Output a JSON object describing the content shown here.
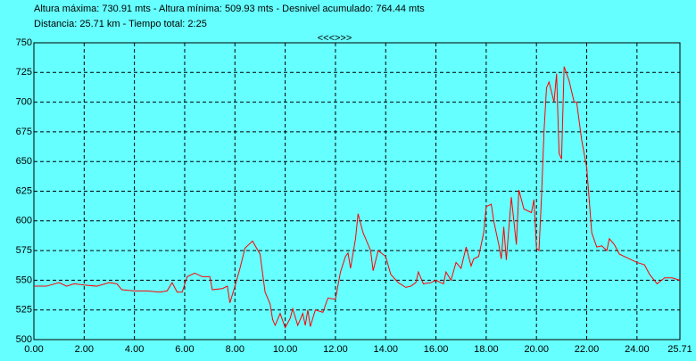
{
  "chart_data": {
    "type": "line",
    "title": "Altura máxima: 730.91 mts - Altura mínima: 509.93 mts - Desnivel acumulado: 764.44 mts",
    "subtitle": "Distancia: 25.71 km - Tiempo total: 2:25",
    "nav": "<<<>>>",
    "x": [
      0,
      0.5,
      1.0,
      1.3,
      1.6,
      2.0,
      2.5,
      3.0,
      3.3,
      3.5,
      4.0,
      4.5,
      5.0,
      5.3,
      5.5,
      5.7,
      5.9,
      6.1,
      6.4,
      6.7,
      7.0,
      7.1,
      7.5,
      7.7,
      7.8,
      8.0,
      8.2,
      8.4,
      8.7,
      9.0,
      9.2,
      9.4,
      9.5,
      9.6,
      9.8,
      10.0,
      10.2,
      10.3,
      10.5,
      10.7,
      10.8,
      10.9,
      11.0,
      11.2,
      11.5,
      11.7,
      12.0,
      12.2,
      12.4,
      12.5,
      12.6,
      12.8,
      12.9,
      13.1,
      13.4,
      13.5,
      13.7,
      14.0,
      14.2,
      14.5,
      14.8,
      15.0,
      15.2,
      15.3,
      15.5,
      15.8,
      16.0,
      16.3,
      16.4,
      16.6,
      16.8,
      17.0,
      17.2,
      17.4,
      17.5,
      17.7,
      17.9,
      18.0,
      18.2,
      18.3,
      18.5,
      18.6,
      18.7,
      18.8,
      19.0,
      19.2,
      19.3,
      19.5,
      19.8,
      19.9,
      20.0,
      20.1,
      20.2,
      20.3,
      20.4,
      20.5,
      20.7,
      20.8,
      20.9,
      21.0,
      21.1,
      21.3,
      21.5,
      21.6,
      21.8,
      22.0,
      22.2,
      22.4,
      22.6,
      22.8,
      22.9,
      23.1,
      23.3,
      23.7,
      24.0,
      24.3,
      24.5,
      24.8,
      25.1,
      25.4,
      25.71
    ],
    "series": [
      {
        "color": "#ff0000",
        "values": [
          545,
          545,
          548,
          545,
          547,
          546,
          545,
          548,
          547,
          542,
          541,
          541,
          540,
          541,
          548,
          540,
          540,
          553,
          556,
          553,
          553,
          542,
          543,
          545,
          531,
          545,
          560,
          577,
          583,
          572,
          540,
          530,
          517,
          512,
          522,
          510,
          518,
          526,
          512,
          522,
          512,
          525,
          511,
          525,
          523,
          535,
          534,
          557,
          570,
          573,
          560,
          585,
          606,
          590,
          575,
          558,
          575,
          570,
          555,
          548,
          544,
          545,
          548,
          557,
          547,
          548,
          550,
          547,
          557,
          550,
          565,
          560,
          578,
          562,
          568,
          570,
          590,
          612,
          614,
          600,
          580,
          568,
          595,
          567,
          620,
          580,
          626,
          610,
          607,
          618,
          577,
          575,
          620,
          675,
          712,
          717,
          700,
          724,
          657,
          652,
          730,
          718,
          700,
          700,
          668,
          645,
          590,
          578,
          579,
          575,
          585,
          580,
          572,
          568,
          565,
          563,
          555,
          547,
          552,
          552,
          550
        ]
      }
    ],
    "xlim": [
      0,
      25.71
    ],
    "ylim": [
      500,
      750
    ],
    "xticks": [
      {
        "value": 0,
        "label": "0.00"
      },
      {
        "value": 2,
        "label": "2.00"
      },
      {
        "value": 4,
        "label": "4.00"
      },
      {
        "value": 6,
        "label": "6.00"
      },
      {
        "value": 8,
        "label": "8.00"
      },
      {
        "value": 10,
        "label": "10.00"
      },
      {
        "value": 12,
        "label": "12.00"
      },
      {
        "value": 14,
        "label": "14.00"
      },
      {
        "value": 16,
        "label": "16.00"
      },
      {
        "value": 18,
        "label": "18.00"
      },
      {
        "value": 20,
        "label": "20.00"
      },
      {
        "value": 22,
        "label": "22.00"
      },
      {
        "value": 24,
        "label": "24.00"
      },
      {
        "value": 25.71,
        "label": "25.71"
      }
    ],
    "yticks": [
      500,
      525,
      550,
      575,
      600,
      625,
      650,
      675,
      700,
      725,
      750
    ],
    "grid": true
  }
}
